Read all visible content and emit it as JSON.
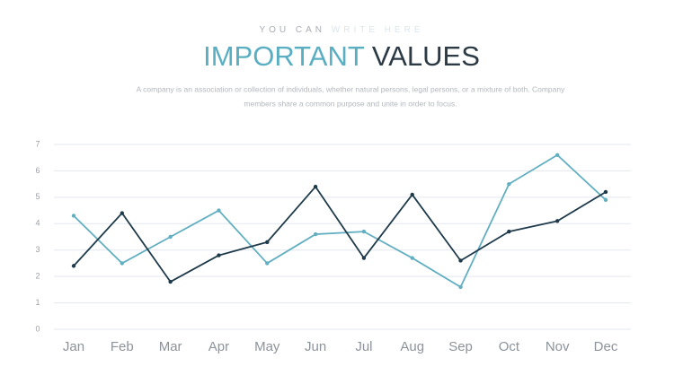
{
  "header": {
    "kicker": [
      "YOU CAN",
      "WRITE HERE"
    ],
    "title": [
      "IMPORTANT",
      "VALUES"
    ],
    "subtitle": [
      "A company is an association or collection of individuals, whether natural persons, legal persons, or a mixture of both. Company",
      "members share a common purpose and unite in order to focus."
    ]
  },
  "chart_data": {
    "type": "line",
    "categories": [
      "Jan",
      "Feb",
      "Mar",
      "Apr",
      "May",
      "Jun",
      "Jul",
      "Aug",
      "Sep",
      "Oct",
      "Nov",
      "Dec"
    ],
    "series": [
      {
        "color": "#62afc2",
        "values": [
          4.3,
          2.5,
          3.5,
          4.5,
          2.5,
          3.6,
          3.7,
          2.7,
          1.6,
          5.5,
          6.6,
          4.9
        ]
      },
      {
        "color": "#1f3b4b",
        "values": [
          2.4,
          4.4,
          1.8,
          2.8,
          3.3,
          5.4,
          2.7,
          5.1,
          2.6,
          3.7,
          4.1,
          5.2
        ]
      }
    ],
    "ylim": [
      0,
      7
    ],
    "yticks": [
      0,
      1,
      2,
      3,
      4,
      5,
      6,
      7
    ],
    "grid": true
  }
}
